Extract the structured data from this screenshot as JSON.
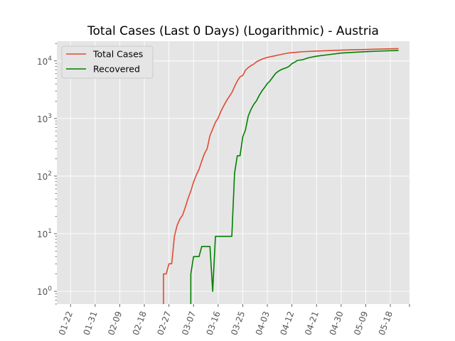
{
  "chart_data": {
    "type": "line",
    "title": "Total Cases (Last 0 Days) (Logarithmic) - Austria",
    "xlabel": "",
    "ylabel": "",
    "yscale": "log",
    "ylim": [
      0.6,
      22000
    ],
    "xlim": [
      "2020-01-17",
      "2020-05-25"
    ],
    "grid": true,
    "legend_position": "top-left",
    "x_ticks": [
      "2020-01-22",
      "2020-01-31",
      "2020-02-09",
      "2020-02-18",
      "2020-02-27",
      "2020-03-07",
      "2020-03-16",
      "2020-03-25",
      "2020-04-03",
      "2020-04-12",
      "2020-04-21",
      "2020-04-30",
      "2020-05-09",
      "2020-05-18"
    ],
    "x_tick_labels": [
      "01-22",
      "01-31",
      "02-09",
      "02-18",
      "02-27",
      "03-07",
      "03-16",
      "03-25",
      "04-03",
      "04-12",
      "04-21",
      "04-30",
      "05-09",
      "05-18"
    ],
    "y_ticks": [
      1,
      10,
      100,
      1000,
      10000
    ],
    "y_tick_labels": [
      {
        "base": "10",
        "exp": "0"
      },
      {
        "base": "10",
        "exp": "1"
      },
      {
        "base": "10",
        "exp": "2"
      },
      {
        "base": "10",
        "exp": "3"
      },
      {
        "base": "10",
        "exp": "4"
      }
    ],
    "series": [
      {
        "name": "Total Cases",
        "color": "#e24a33",
        "points": [
          [
            "2020-02-25",
            0.5
          ],
          [
            "2020-02-25",
            2
          ],
          [
            "2020-02-26",
            2
          ],
          [
            "2020-02-27",
            3
          ],
          [
            "2020-02-28",
            3
          ],
          [
            "2020-02-29",
            9
          ],
          [
            "2020-03-01",
            14
          ],
          [
            "2020-03-02",
            18
          ],
          [
            "2020-03-03",
            21
          ],
          [
            "2020-03-04",
            29
          ],
          [
            "2020-03-05",
            41
          ],
          [
            "2020-03-06",
            55
          ],
          [
            "2020-03-07",
            79
          ],
          [
            "2020-03-08",
            104
          ],
          [
            "2020-03-09",
            131
          ],
          [
            "2020-03-10",
            182
          ],
          [
            "2020-03-11",
            246
          ],
          [
            "2020-03-12",
            302
          ],
          [
            "2020-03-13",
            504
          ],
          [
            "2020-03-14",
            655
          ],
          [
            "2020-03-15",
            860
          ],
          [
            "2020-03-16",
            1018
          ],
          [
            "2020-03-17",
            1332
          ],
          [
            "2020-03-18",
            1646
          ],
          [
            "2020-03-19",
            2013
          ],
          [
            "2020-03-20",
            2388
          ],
          [
            "2020-03-21",
            2814
          ],
          [
            "2020-03-22",
            3582
          ],
          [
            "2020-03-23",
            4474
          ],
          [
            "2020-03-24",
            5283
          ],
          [
            "2020-03-25",
            5588
          ],
          [
            "2020-03-26",
            6909
          ],
          [
            "2020-03-27",
            7657
          ],
          [
            "2020-03-28",
            8271
          ],
          [
            "2020-03-29",
            8788
          ],
          [
            "2020-03-30",
            9618
          ],
          [
            "2020-03-31",
            10180
          ],
          [
            "2020-04-01",
            10711
          ],
          [
            "2020-04-02",
            11129
          ],
          [
            "2020-04-03",
            11524
          ],
          [
            "2020-04-05",
            12051
          ],
          [
            "2020-04-07",
            12640
          ],
          [
            "2020-04-09",
            13244
          ],
          [
            "2020-04-11",
            13806
          ],
          [
            "2020-04-13",
            14041
          ],
          [
            "2020-04-16",
            14476
          ],
          [
            "2020-04-20",
            14749
          ],
          [
            "2020-04-25",
            15071
          ],
          [
            "2020-04-30",
            15402
          ],
          [
            "2020-05-06",
            15684
          ],
          [
            "2020-05-12",
            15961
          ],
          [
            "2020-05-18",
            16242
          ],
          [
            "2020-05-21",
            16353
          ]
        ]
      },
      {
        "name": "Recovered",
        "color": "#008000",
        "points": [
          [
            "2020-03-06",
            0.5
          ],
          [
            "2020-03-06",
            2
          ],
          [
            "2020-03-07",
            4
          ],
          [
            "2020-03-08",
            4
          ],
          [
            "2020-03-09",
            4
          ],
          [
            "2020-03-10",
            6
          ],
          [
            "2020-03-11",
            6
          ],
          [
            "2020-03-12",
            6
          ],
          [
            "2020-03-13",
            6
          ],
          [
            "2020-03-14",
            1
          ],
          [
            "2020-03-15",
            9
          ],
          [
            "2020-03-16",
            9
          ],
          [
            "2020-03-17",
            9
          ],
          [
            "2020-03-18",
            9
          ],
          [
            "2020-03-19",
            9
          ],
          [
            "2020-03-20",
            9
          ],
          [
            "2020-03-21",
            9
          ],
          [
            "2020-03-22",
            112
          ],
          [
            "2020-03-23",
            225
          ],
          [
            "2020-03-24",
            225
          ],
          [
            "2020-03-25",
            479
          ],
          [
            "2020-03-26",
            636
          ],
          [
            "2020-03-27",
            1095
          ],
          [
            "2020-03-28",
            1436
          ],
          [
            "2020-03-29",
            1749
          ],
          [
            "2020-03-30",
            2022
          ],
          [
            "2020-03-31",
            2507
          ],
          [
            "2020-04-01",
            2998
          ],
          [
            "2020-04-02",
            3463
          ],
          [
            "2020-04-03",
            4046
          ],
          [
            "2020-04-04",
            4512
          ],
          [
            "2020-04-05",
            5240
          ],
          [
            "2020-04-06",
            6064
          ],
          [
            "2020-04-07",
            6604
          ],
          [
            "2020-04-08",
            7033
          ],
          [
            "2020-04-09",
            7343
          ],
          [
            "2020-04-10",
            7633
          ],
          [
            "2020-04-11",
            8098
          ],
          [
            "2020-04-12",
            8986
          ],
          [
            "2020-04-13",
            9500
          ],
          [
            "2020-04-14",
            10214
          ],
          [
            "2020-04-16",
            10501
          ],
          [
            "2020-04-18",
            11328
          ],
          [
            "2020-04-21",
            12103
          ],
          [
            "2020-04-25",
            12779
          ],
          [
            "2020-04-30",
            13698
          ],
          [
            "2020-05-05",
            14148
          ],
          [
            "2020-05-10",
            14563
          ],
          [
            "2020-05-15",
            14882
          ],
          [
            "2020-05-21",
            15197
          ]
        ]
      }
    ]
  }
}
